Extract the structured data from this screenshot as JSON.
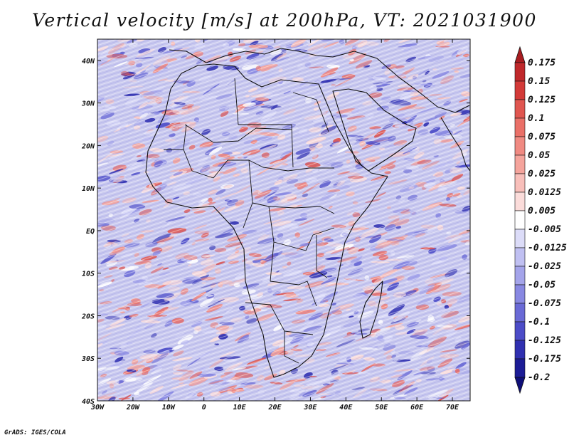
{
  "title": "Vertical velocity [m/s] at 200hPa, VT: 2021031900",
  "credit": "GrADS: IGES/COLA",
  "map": {
    "lon_range": [
      -30,
      75
    ],
    "lat_range": [
      -40,
      45
    ],
    "lon_ticks": [
      "30W",
      "20W",
      "10W",
      "0",
      "10E",
      "20E",
      "30E",
      "40E",
      "50E",
      "60E",
      "70E"
    ],
    "lat_ticks": [
      "40N",
      "30N",
      "20N",
      "10N",
      "EQ",
      "10S",
      "20S",
      "30S",
      "40S"
    ],
    "tick_lons": [
      -30,
      -20,
      -10,
      0,
      10,
      20,
      30,
      40,
      50,
      60,
      70
    ],
    "tick_lats": [
      40,
      30,
      20,
      10,
      0,
      -10,
      -20,
      -30,
      -40
    ]
  },
  "colorbar": {
    "labels": [
      "0.175",
      "0.15",
      "0.125",
      "0.1",
      "0.075",
      "0.05",
      "0.025",
      "0.0125",
      "0.005",
      "-0.005",
      "-0.0125",
      "-0.025",
      "-0.05",
      "-0.075",
      "-0.1",
      "-0.125",
      "-0.175",
      "-0.2"
    ],
    "colors": [
      "#a81c20",
      "#c0282b",
      "#d33a38",
      "#e05650",
      "#ea7068",
      "#f08a82",
      "#f5a49c",
      "#f8bfba",
      "#fbdcda",
      "#ffffff",
      "#dcdcf8",
      "#c0c0f2",
      "#a4a4ea",
      "#8888e2",
      "#6a6ad6",
      "#4c4cc8",
      "#3030b0",
      "#1c1c96",
      "#0e0e78"
    ]
  },
  "colors": {
    "ocean_red": "#f0a8a8",
    "ocean_blue": "#aeb4ec",
    "land_line": "#111111"
  }
}
